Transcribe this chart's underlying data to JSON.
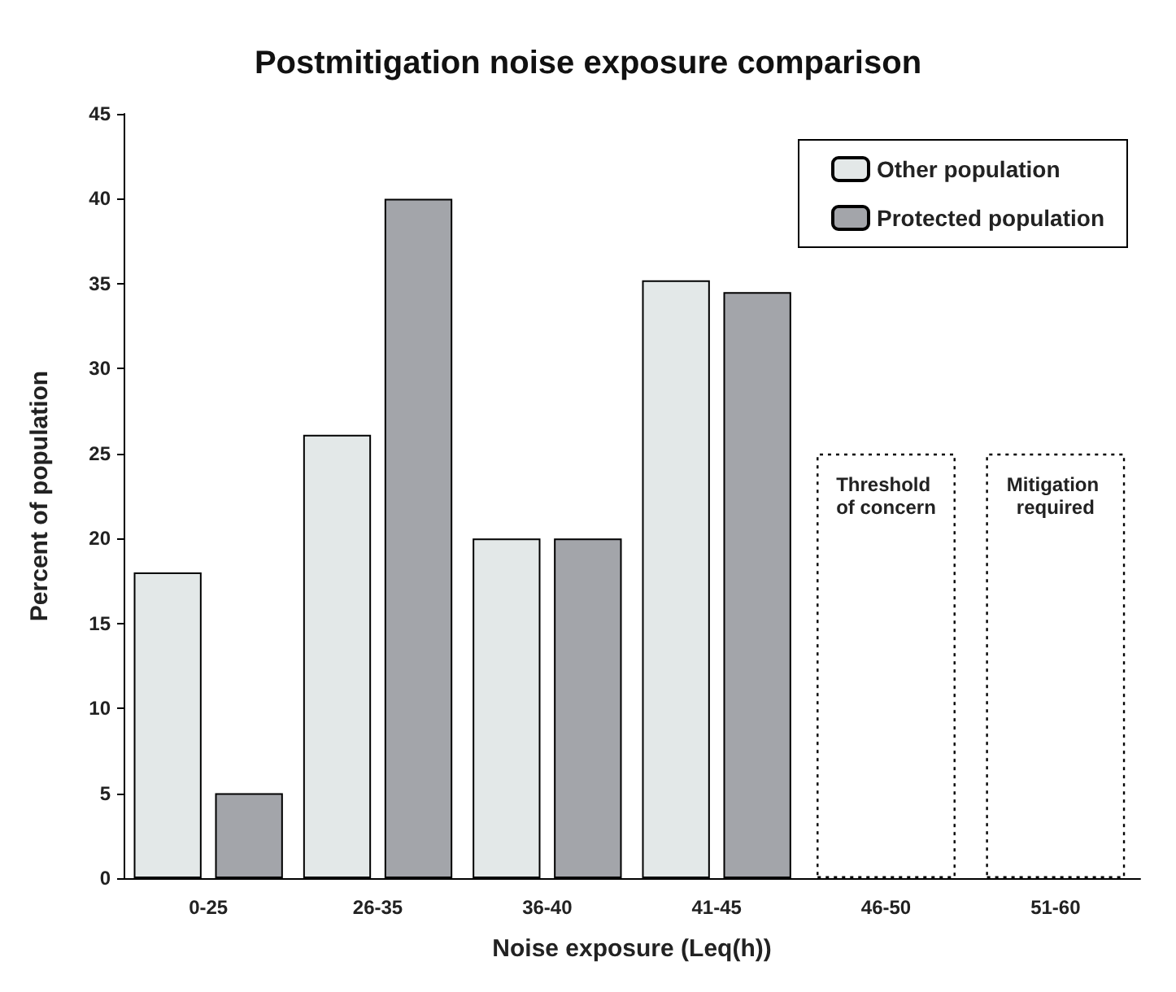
{
  "chart_data": {
    "type": "bar",
    "title": "Postmitigation noise exposure comparison",
    "xlabel": "Noise exposure (Leq(h))",
    "ylabel": "Percent of population",
    "categories": [
      "0-25",
      "26-35",
      "36-40",
      "41-45",
      "46-50",
      "51-60"
    ],
    "series": [
      {
        "name": "Other population",
        "color": "#e3e8e8",
        "values": [
          18,
          26.1,
          20,
          35.2,
          null,
          null
        ]
      },
      {
        "name": "Protected population",
        "color": "#a3a5aa",
        "values": [
          5,
          40,
          20,
          34.5,
          null,
          null
        ]
      },
      {
        "color": "#000000",
        "line_style": "dotted",
        "values": [
          null,
          null,
          null,
          null,
          25,
          25
        ]
      }
    ],
    "annotations": [
      "Threshold of concern",
      "Mitigation required"
    ],
    "ylim": [
      0,
      45
    ],
    "yticks": [
      0,
      5,
      10,
      15,
      20,
      25,
      30,
      35,
      40,
      45
    ],
    "grid": false,
    "legend": "top right"
  }
}
